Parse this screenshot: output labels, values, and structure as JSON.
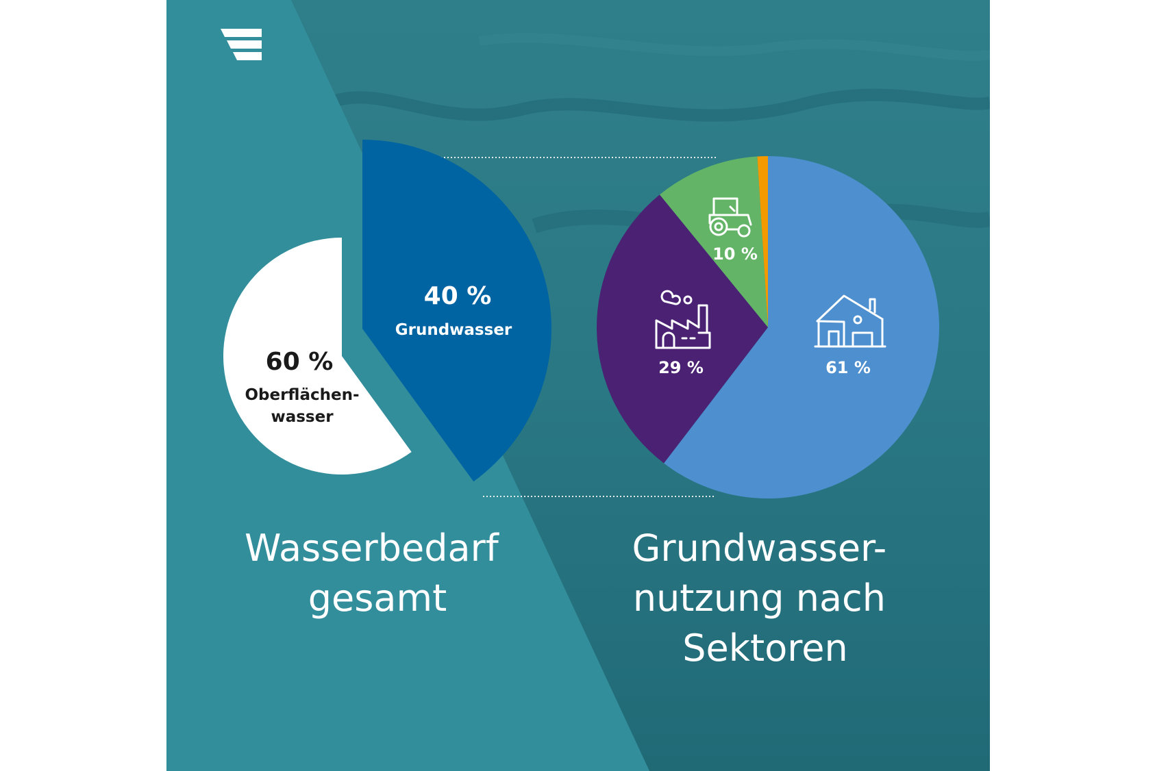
{
  "colors": {
    "panel_left": "#338e9c",
    "panel_right": "#2a7683",
    "surface_water": "#ffffff",
    "groundwater": "#0064a3",
    "households": "#4e8fcf",
    "industry": "#4a2173",
    "agriculture": "#64b467",
    "other": "#f29a00",
    "text_dark": "#1a1a1a",
    "text_light": "#ffffff"
  },
  "logo": {
    "icon": "stripes-logo-icon"
  },
  "chart_data": [
    {
      "type": "pie",
      "title_lines": [
        "Wasserbedarf",
        "gesamt"
      ],
      "slices": [
        {
          "label_lines": [
            "Oberflächen-",
            "wasser"
          ],
          "value": 60,
          "value_label": "60 %",
          "color": "#ffffff",
          "exploded": false
        },
        {
          "label_lines": [
            "Grundwasser"
          ],
          "value": 40,
          "value_label": "40 %",
          "color": "#0064a3",
          "exploded": true
        }
      ]
    },
    {
      "type": "pie",
      "title_lines": [
        "Grundwasser-",
        "nutzung nach",
        "Sektoren"
      ],
      "slices": [
        {
          "value": 61,
          "value_label": "61 %",
          "icon": "house-icon",
          "color": "#4e8fcf"
        },
        {
          "value": 29,
          "value_label": "29 %",
          "icon": "factory-icon",
          "color": "#4a2173"
        },
        {
          "value": 10,
          "value_label": "10 %",
          "icon": "tractor-icon",
          "color": "#64b467"
        },
        {
          "value": 1,
          "value_label": "",
          "color": "#f29a00"
        }
      ]
    }
  ]
}
